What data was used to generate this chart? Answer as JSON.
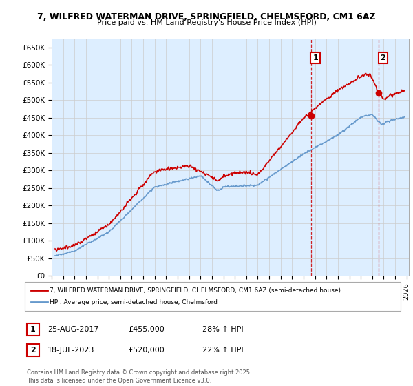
{
  "title_line1": "7, WILFRED WATERMAN DRIVE, SPRINGFIELD, CHELMSFORD, CM1 6AZ",
  "title_line2": "Price paid vs. HM Land Registry's House Price Index (HPI)",
  "ylabel_ticks": [
    "£0",
    "£50K",
    "£100K",
    "£150K",
    "£200K",
    "£250K",
    "£300K",
    "£350K",
    "£400K",
    "£450K",
    "£500K",
    "£550K",
    "£600K",
    "£650K"
  ],
  "ytick_values": [
    0,
    50000,
    100000,
    150000,
    200000,
    250000,
    300000,
    350000,
    400000,
    450000,
    500000,
    550000,
    600000,
    650000
  ],
  "ylim": [
    0,
    675000
  ],
  "xlim_start": 1995.3,
  "xlim_end": 2026.2,
  "sale1_date": 2017.65,
  "sale1_price": 455000,
  "sale2_date": 2023.55,
  "sale2_price": 520000,
  "legend_line1": "7, WILFRED WATERMAN DRIVE, SPRINGFIELD, CHELMSFORD, CM1 6AZ (semi-detached house)",
  "legend_line2": "HPI: Average price, semi-detached house, Chelmsford",
  "footnote": "Contains HM Land Registry data © Crown copyright and database right 2025.\nThis data is licensed under the Open Government Licence v3.0.",
  "color_red": "#cc0000",
  "color_blue": "#6699cc",
  "color_grid": "#cccccc",
  "color_bg": "#ddeeff",
  "background_color": "#ffffff",
  "hatch_color": "#bbccdd"
}
